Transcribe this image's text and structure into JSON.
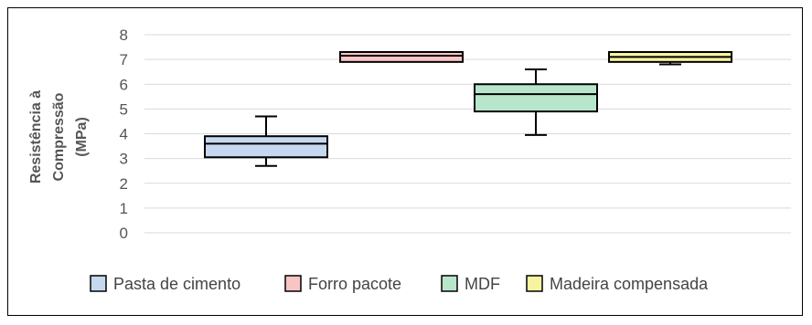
{
  "chart_data": {
    "type": "boxplot",
    "title": "",
    "xlabel": "",
    "ylabel_lines": [
      "Resistência à",
      "Compressão",
      "(MPa)"
    ],
    "ylim": [
      0,
      8
    ],
    "yticks": [
      "0",
      "1",
      "2",
      "3",
      "4",
      "5",
      "6",
      "7",
      "8"
    ],
    "grid": true,
    "legend_position": "bottom",
    "categories": [
      "Pasta de cimento",
      "Forro pacote",
      "MDF",
      "Madeira compensada"
    ],
    "series": [
      {
        "name": "Pasta de cimento",
        "color": "#c5d8ef",
        "min": 2.7,
        "q1": 3.05,
        "median": 3.6,
        "q3": 3.9,
        "max": 4.7
      },
      {
        "name": "Forro pacote",
        "color": "#f8c4c4",
        "min": 6.9,
        "q1": 6.9,
        "median": 7.15,
        "q3": 7.3,
        "max": 7.3
      },
      {
        "name": "MDF",
        "color": "#b8e6cb",
        "min": 3.95,
        "q1": 4.9,
        "median": 5.6,
        "q3": 6.0,
        "max": 6.6
      },
      {
        "name": "Madeira compensada",
        "color": "#f7f3a0",
        "min": 6.8,
        "q1": 6.9,
        "median": 7.1,
        "q3": 7.3,
        "max": 7.3
      }
    ]
  }
}
